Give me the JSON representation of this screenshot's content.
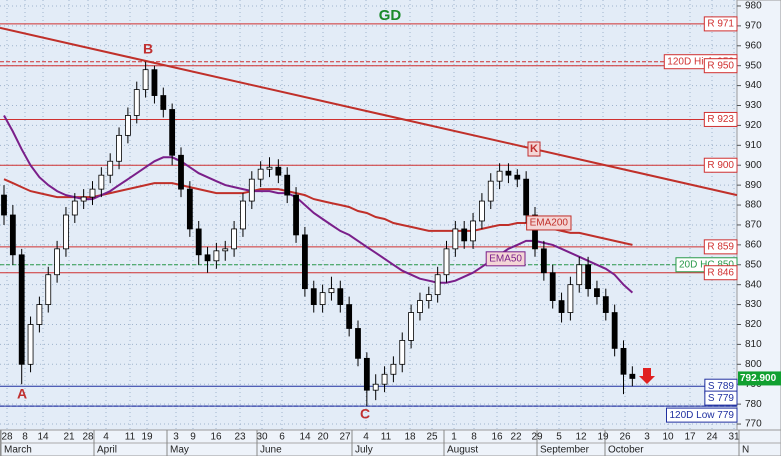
{
  "chart_data": {
    "type": "candlestick",
    "title": "GD",
    "grid": true,
    "ylim": [
      767,
      983
    ],
    "yticks": [
      770,
      780,
      790,
      800,
      810,
      820,
      830,
      840,
      850,
      860,
      870,
      880,
      890,
      900,
      910,
      920,
      930,
      940,
      950,
      960,
      970,
      980
    ],
    "day_labels": [
      "28",
      "8",
      "14",
      "21",
      "28",
      "4",
      "11",
      "19",
      "3",
      "9",
      "16",
      "23",
      "30",
      "6",
      "14",
      "20",
      "27",
      "4",
      "11",
      "18",
      "25",
      "1",
      "8",
      "16",
      "22",
      "29",
      "5",
      "12",
      "19",
      "26",
      "3",
      "10",
      "17",
      "24",
      "31"
    ],
    "month_labels": [
      "March",
      "April",
      "May",
      "June",
      "July",
      "August",
      "September",
      "October",
      "N"
    ],
    "up_color": "#ffffff",
    "down_color": "#000000",
    "open": [
      885,
      875,
      855,
      800,
      820,
      830,
      845,
      858,
      875,
      882,
      884,
      888,
      895,
      902,
      915,
      925,
      938,
      948,
      935,
      928,
      905,
      888,
      868,
      855,
      852,
      857,
      858,
      868,
      882,
      893,
      898,
      899,
      895,
      885,
      865,
      838,
      830,
      836,
      838,
      830,
      818,
      803,
      787,
      790,
      795,
      800,
      812,
      826,
      832,
      835,
      845,
      858,
      868,
      862,
      872,
      882,
      892,
      897,
      895,
      893,
      875,
      858,
      846,
      832,
      826,
      840,
      850,
      838,
      834,
      826,
      808,
      795
    ],
    "high": [
      890,
      880,
      858,
      824,
      834,
      849,
      862,
      879,
      886,
      888,
      892,
      899,
      906,
      919,
      929,
      942,
      952,
      950,
      939,
      931,
      909,
      892,
      872,
      859,
      861,
      862,
      872,
      886,
      897,
      902,
      904,
      903,
      899,
      889,
      869,
      842,
      840,
      844,
      842,
      834,
      822,
      806,
      795,
      799,
      804,
      816,
      830,
      836,
      839,
      849,
      862,
      872,
      872,
      876,
      886,
      896,
      901,
      901,
      898,
      897,
      879,
      862,
      850,
      836,
      844,
      854,
      854,
      842,
      838,
      830,
      812,
      799
    ],
    "low": [
      870,
      850,
      790,
      796,
      816,
      826,
      841,
      854,
      871,
      878,
      880,
      884,
      891,
      898,
      911,
      921,
      934,
      931,
      924,
      900,
      884,
      864,
      850,
      846,
      848,
      852,
      854,
      864,
      878,
      889,
      894,
      891,
      881,
      861,
      834,
      826,
      826,
      832,
      826,
      814,
      799,
      779,
      782,
      786,
      791,
      796,
      808,
      822,
      828,
      831,
      841,
      854,
      858,
      858,
      868,
      878,
      888,
      891,
      889,
      871,
      854,
      842,
      828,
      821,
      822,
      836,
      834,
      830,
      822,
      804,
      785,
      789
    ],
    "close": [
      875,
      855,
      800,
      820,
      830,
      845,
      858,
      875,
      882,
      884,
      888,
      895,
      902,
      915,
      925,
      938,
      948,
      935,
      928,
      905,
      888,
      868,
      855,
      852,
      857,
      858,
      868,
      882,
      893,
      898,
      899,
      895,
      885,
      865,
      838,
      830,
      836,
      838,
      830,
      818,
      803,
      787,
      790,
      795,
      800,
      812,
      826,
      832,
      835,
      845,
      858,
      868,
      862,
      872,
      882,
      892,
      897,
      895,
      893,
      875,
      858,
      846,
      832,
      826,
      840,
      850,
      838,
      834,
      826,
      808,
      795,
      792.9
    ],
    "last_price_label": "792.900",
    "ema": [
      {
        "name": "EMA200",
        "color": "#c0302a",
        "values": [
          893,
          891,
          889,
          887,
          886,
          885,
          884,
          884,
          884,
          884,
          884,
          885,
          886,
          887,
          888,
          889,
          890,
          891,
          891,
          891,
          890,
          889,
          888,
          887,
          886,
          886,
          886,
          886,
          887,
          888,
          888,
          888,
          887,
          886,
          885,
          883,
          882,
          881,
          880,
          879,
          877,
          876,
          874,
          873,
          871,
          870,
          869,
          868,
          867,
          867,
          867,
          867,
          867,
          867,
          868,
          869,
          870,
          870,
          871,
          871,
          870,
          869,
          868,
          867,
          866,
          866,
          865,
          864,
          863,
          862,
          861,
          860
        ]
      },
      {
        "name": "EMA50",
        "color": "#7a1f8a",
        "values": [
          925,
          917,
          908,
          900,
          894,
          890,
          887,
          885,
          884,
          883,
          883,
          885,
          887,
          890,
          893,
          896,
          899,
          902,
          904,
          904,
          902,
          899,
          896,
          894,
          892,
          890,
          889,
          888,
          887,
          887,
          887,
          886,
          886,
          884,
          880,
          876,
          873,
          870,
          867,
          865,
          862,
          859,
          856,
          853,
          850,
          847,
          845,
          843,
          842,
          841,
          841,
          842,
          844,
          846,
          849,
          852,
          855,
          858,
          860,
          862,
          862,
          861,
          860,
          858,
          856,
          854,
          852,
          850,
          848,
          845,
          840,
          836
        ]
      }
    ],
    "trendline": {
      "start": 969,
      "end": 885,
      "color": "#c0302a"
    },
    "levels": [
      {
        "value": 971,
        "label": "R 971",
        "color": "#d03030",
        "style": "solid"
      },
      {
        "value": 952,
        "label": "120D High 952",
        "color": "#d03030",
        "style": "dashed"
      },
      {
        "value": 950,
        "label": "R 950",
        "color": "#d03030",
        "style": "solid"
      },
      {
        "value": 923,
        "label": "R 923",
        "color": "#d03030",
        "style": "solid"
      },
      {
        "value": 900,
        "label": "R 900",
        "color": "#d03030",
        "style": "solid"
      },
      {
        "value": 859,
        "label": "R 859",
        "color": "#d03030",
        "style": "solid"
      },
      {
        "value": 850,
        "label": "20D HC 850",
        "color": "#2a9a4a",
        "style": "dashed"
      },
      {
        "value": 846,
        "label": "R 846",
        "color": "#d03030",
        "style": "solid"
      },
      {
        "value": 789,
        "label": "S 789",
        "color": "#2030a0",
        "style": "solid"
      },
      {
        "value": 779,
        "label": "S 779",
        "color": "#2030a0",
        "style": "solid"
      },
      {
        "value": 779,
        "label": "120D Low 779",
        "color": "#2030a0",
        "style": "dashed"
      }
    ],
    "annotations": [
      "A",
      "B",
      "C",
      "K"
    ]
  }
}
